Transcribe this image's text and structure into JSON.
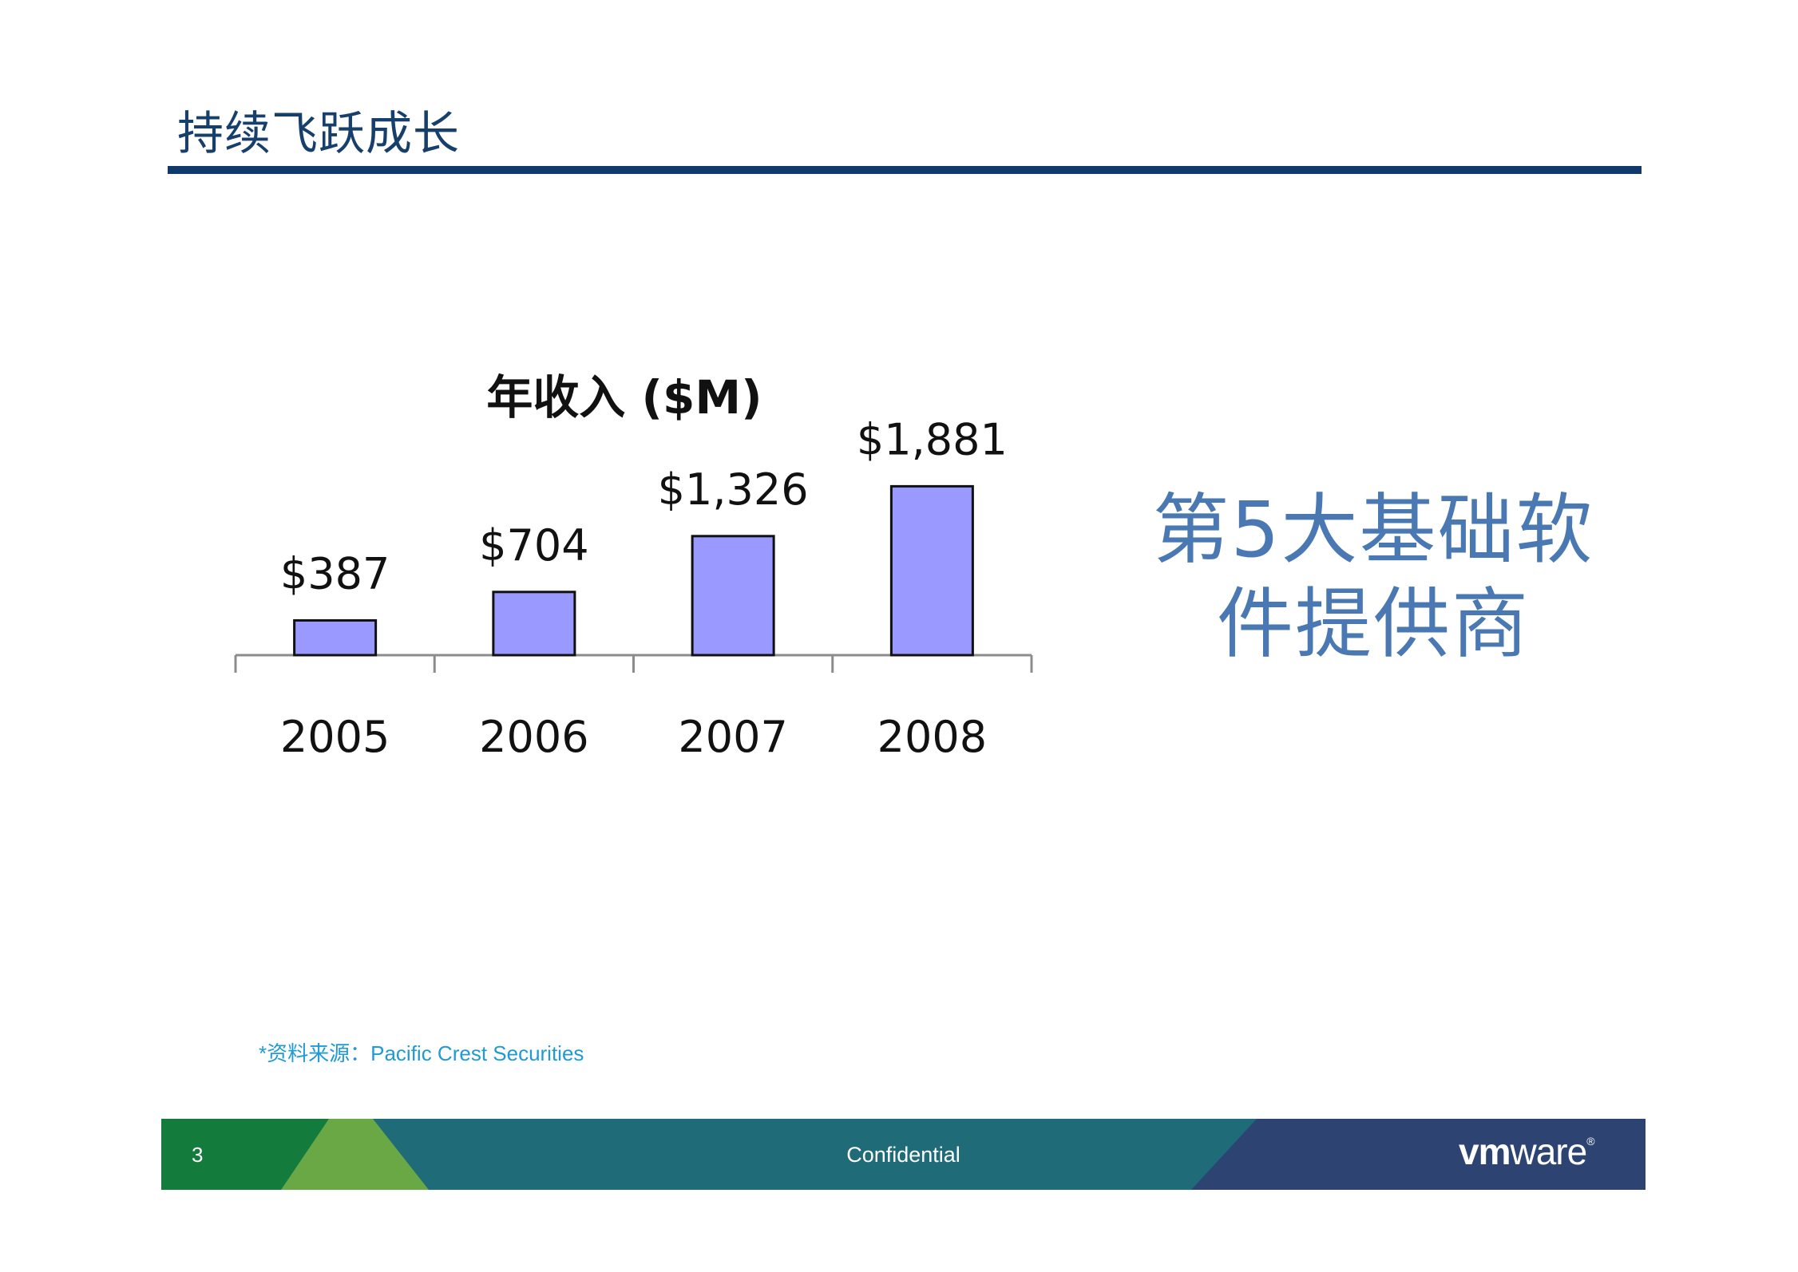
{
  "slide": {
    "title": "持续飞跃成长",
    "tagline_line1": "第5大基础软",
    "tagline_line2": "件提供商",
    "source": "*资料来源：Pacific Crest Securities"
  },
  "footer": {
    "page_number": "3",
    "confidential": "Confidential",
    "logo_text": "vmware",
    "logo_vm": "vm",
    "logo_ware": "ware"
  },
  "colors": {
    "title": "#173f6b",
    "rule": "#0f3a6b",
    "bar_fill": "#9999ff",
    "tagline": "#4a78b2",
    "source": "#1f9ad6",
    "footer_green": "#137c3c",
    "footer_lightgreen": "#6aa845",
    "footer_teal": "#1f6b78",
    "footer_navy": "#2d4473"
  },
  "chart_data": {
    "type": "bar",
    "title": "年收入 ($M)",
    "categories": [
      "2005",
      "2006",
      "2007",
      "2008"
    ],
    "values": [
      387,
      704,
      1326,
      1881
    ],
    "data_labels": [
      "$387",
      "$704",
      "$1,326",
      "$1,881"
    ],
    "xlabel": "",
    "ylabel": "",
    "ylim": [
      0,
      2000
    ],
    "grid": false,
    "legend": "none"
  }
}
